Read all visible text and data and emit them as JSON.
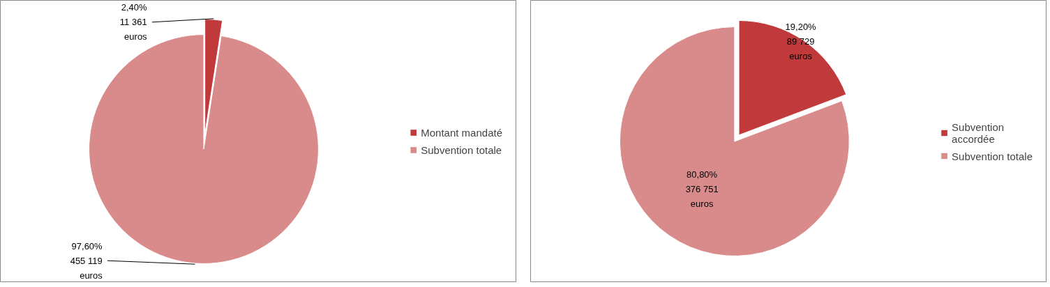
{
  "chart_data": [
    {
      "type": "pie",
      "categories": [
        "Montant mandaté",
        "Subvention totale"
      ],
      "values": [
        11361,
        455119
      ],
      "colors": [
        "#c0393b",
        "#d98b8b"
      ],
      "value_labels": [
        "2,40%\n11 361\neuros",
        "97,60%\n455 119\neuros"
      ],
      "legend": "right"
    },
    {
      "type": "pie",
      "categories": [
        "Subvention\naccordée",
        "Subvention totale"
      ],
      "values": [
        89729,
        376751
      ],
      "colors": [
        "#c0393b",
        "#d98b8b"
      ],
      "value_labels": [
        "19,20%\n89 729\neuros",
        "80,80%\n376 751\neuros"
      ],
      "legend": "right"
    }
  ]
}
